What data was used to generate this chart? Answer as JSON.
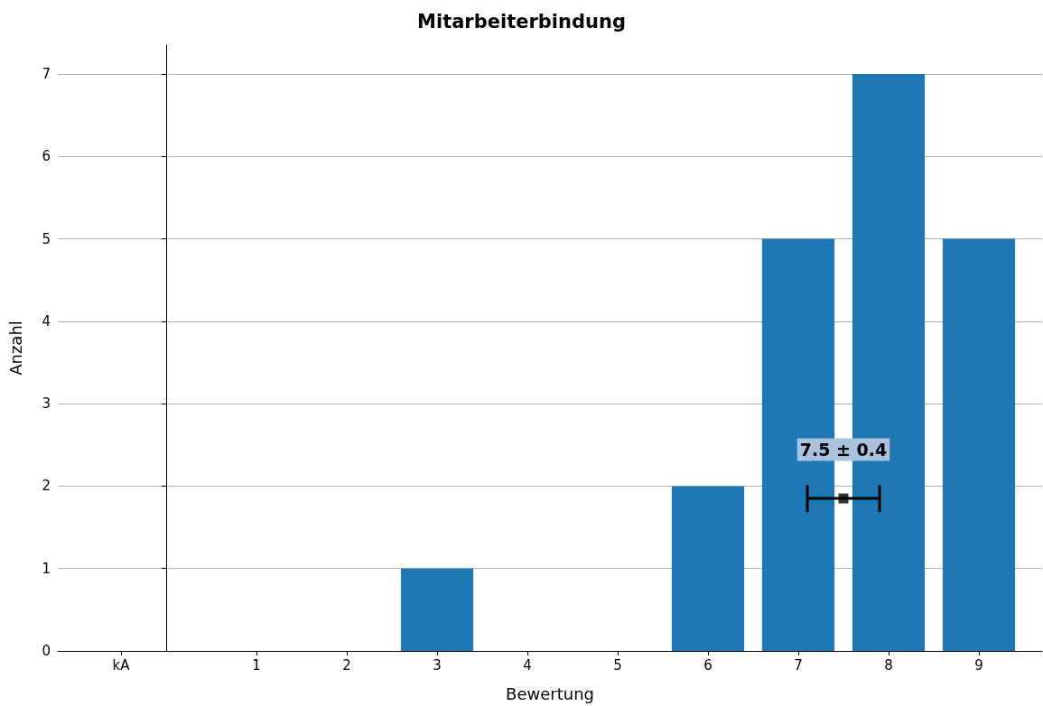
{
  "chart_data": {
    "type": "bar",
    "title": "Mitarbeiterbindung",
    "xlabel": "Bewertung",
    "ylabel": "Anzahl",
    "x": [
      -0.5,
      1,
      2,
      3,
      4,
      5,
      6,
      7,
      8,
      9
    ],
    "series": [
      {
        "color": "#1f77b4",
        "values": [
          0,
          0,
          0,
          1,
          0,
          0,
          2,
          5,
          7,
          5
        ]
      },
      {
        "type": "scatter",
        "color": "#000000",
        "x": [
          7.5
        ],
        "values": [
          1.85
        ],
        "xerrors": [
          0.4
        ]
      }
    ],
    "xlim": [
      -1.2,
      9.7
    ],
    "xticks": [
      {
        "value": -0.5,
        "label": "kA"
      },
      1,
      2,
      3,
      4,
      5,
      6,
      7,
      8,
      9
    ],
    "ylim": [
      0,
      7.35
    ],
    "yticks": [
      0,
      1,
      2,
      3,
      4,
      5,
      6,
      7
    ],
    "annotations": [
      "7.5 ± 0.4"
    ],
    "grid": "y",
    "marker": "square"
  }
}
